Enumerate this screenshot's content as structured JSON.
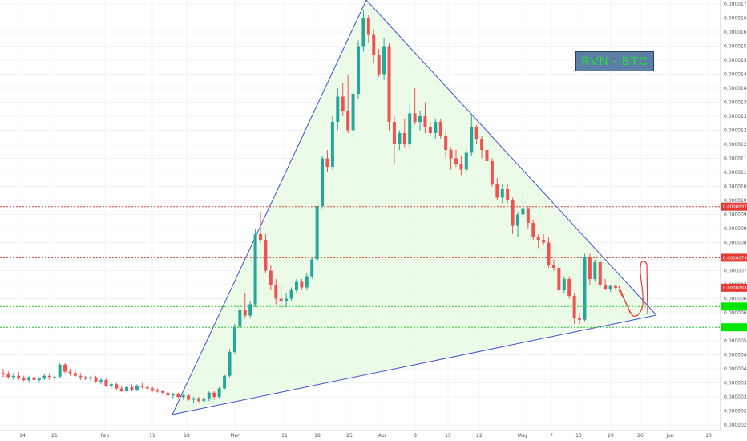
{
  "chart_data": {
    "type": "candlestick",
    "title_box": "RVN - BTC",
    "y_ticks": [
      "0.00001700",
      "0.00001650",
      "0.00001600",
      "0.00001550",
      "0.00001500",
      "0.00001450",
      "0.00001400",
      "0.00001350",
      "0.00001300",
      "0.00001250",
      "0.00001200",
      "0.00001150",
      "0.00001100",
      "0.00001050",
      "0.00001000",
      "0.00000950",
      "0.00000900",
      "0.00000850",
      "0.00000750",
      "0.00000700",
      "0.00000650",
      "0.00000600",
      "0.00000550",
      "0.00000500",
      "0.00000450",
      "0.00000400",
      "0.00000350",
      "0.00000300",
      "0.00000250",
      "0.00000200"
    ],
    "x_ticks": [
      "14",
      "21",
      "Feb",
      "11",
      "18",
      "Mar",
      "11",
      "18",
      "25",
      "Apr",
      "8",
      "15",
      "22",
      "May",
      "7",
      "13",
      "20",
      "26",
      "Jun",
      "10"
    ],
    "price_labels": [
      {
        "value": "0.00000978",
        "price": 9.78e-06,
        "color": "#e53935"
      },
      {
        "value": "0.00000796",
        "price": 7.96e-06,
        "color": "#e53935"
      },
      {
        "value": "0.00000689",
        "price": 6.89e-06,
        "color": "#e53935"
      },
      {
        "value": "",
        "price": 6.22e-06,
        "color": "#00e600"
      },
      {
        "value": "",
        "price": 5.48e-06,
        "color": "#00e600"
      }
    ],
    "horizontal_lines": [
      {
        "price": 9.78e-06,
        "color": "#e53935",
        "style": "dotted"
      },
      {
        "price": 7.96e-06,
        "color": "#e53935",
        "style": "dotted"
      },
      {
        "price": 6.22e-06,
        "color": "#22cc22",
        "style": "dotted"
      },
      {
        "price": 5.48e-06,
        "color": "#22cc22",
        "style": "dotted"
      }
    ],
    "colors": {
      "up": "#26a69a",
      "down": "#ef5350",
      "triangle": "#3f51d5",
      "triangle_fill": "#e9fbe6",
      "sketch": "#e53935"
    },
    "candles": [
      {
        "o": 3.85e-06,
        "h": 4e-06,
        "l": 3.7e-06,
        "c": 3.8e-06
      },
      {
        "o": 3.8e-06,
        "h": 3.9e-06,
        "l": 3.65e-06,
        "c": 3.7e-06
      },
      {
        "o": 3.7e-06,
        "h": 3.85e-06,
        "l": 3.6e-06,
        "c": 3.75e-06
      },
      {
        "o": 3.75e-06,
        "h": 3.9e-06,
        "l": 3.6e-06,
        "c": 3.65e-06
      },
      {
        "o": 3.65e-06,
        "h": 3.75e-06,
        "l": 3.55e-06,
        "c": 3.6e-06
      },
      {
        "o": 3.6e-06,
        "h": 3.75e-06,
        "l": 3.5e-06,
        "c": 3.7e-06
      },
      {
        "o": 3.7e-06,
        "h": 3.8e-06,
        "l": 3.55e-06,
        "c": 3.6e-06
      },
      {
        "o": 3.6e-06,
        "h": 3.7e-06,
        "l": 3.5e-06,
        "c": 3.65e-06
      },
      {
        "o": 3.65e-06,
        "h": 3.8e-06,
        "l": 3.6e-06,
        "c": 3.75e-06
      },
      {
        "o": 3.75e-06,
        "h": 3.85e-06,
        "l": 3.6e-06,
        "c": 3.7e-06
      },
      {
        "o": 3.7e-06,
        "h": 3.75e-06,
        "l": 3.6e-06,
        "c": 3.72e-06
      },
      {
        "o": 3.72e-06,
        "h": 4.2e-06,
        "l": 3.65e-06,
        "c": 4.15e-06
      },
      {
        "o": 4.15e-06,
        "h": 4.2e-06,
        "l": 3.85e-06,
        "c": 3.9e-06
      },
      {
        "o": 3.9e-06,
        "h": 4e-06,
        "l": 3.75e-06,
        "c": 3.85e-06
      },
      {
        "o": 3.85e-06,
        "h": 3.95e-06,
        "l": 3.7e-06,
        "c": 3.75e-06
      },
      {
        "o": 3.75e-06,
        "h": 3.85e-06,
        "l": 3.6e-06,
        "c": 3.7e-06
      },
      {
        "o": 3.7e-06,
        "h": 3.75e-06,
        "l": 3.6e-06,
        "c": 3.65e-06
      },
      {
        "o": 3.65e-06,
        "h": 3.75e-06,
        "l": 3.55e-06,
        "c": 3.7e-06
      },
      {
        "o": 3.7e-06,
        "h": 3.75e-06,
        "l": 3.5e-06,
        "c": 3.55e-06
      },
      {
        "o": 3.55e-06,
        "h": 3.65e-06,
        "l": 3.45e-06,
        "c": 3.6e-06
      },
      {
        "o": 3.6e-06,
        "h": 3.65e-06,
        "l": 3.35e-06,
        "c": 3.4e-06
      },
      {
        "o": 3.4e-06,
        "h": 3.5e-06,
        "l": 3.3e-06,
        "c": 3.45e-06
      },
      {
        "o": 3.45e-06,
        "h": 3.5e-06,
        "l": 3.25e-06,
        "c": 3.3e-06
      },
      {
        "o": 3.3e-06,
        "h": 3.4e-06,
        "l": 3.18e-06,
        "c": 3.2e-06
      },
      {
        "o": 3.2e-06,
        "h": 3.4e-06,
        "l": 3.15e-06,
        "c": 3.35e-06
      },
      {
        "o": 3.35e-06,
        "h": 3.45e-06,
        "l": 3.2e-06,
        "c": 3.25e-06
      },
      {
        "o": 3.25e-06,
        "h": 3.45e-06,
        "l": 3.2e-06,
        "c": 3.4e-06
      },
      {
        "o": 3.4e-06,
        "h": 3.5e-06,
        "l": 3.3e-06,
        "c": 3.35e-06
      },
      {
        "o": 3.35e-06,
        "h": 3.45e-06,
        "l": 3.25e-06,
        "c": 3.3e-06
      },
      {
        "o": 3.3e-06,
        "h": 3.35e-06,
        "l": 3.18e-06,
        "c": 3.22e-06
      },
      {
        "o": 3.22e-06,
        "h": 3.3e-06,
        "l": 3.15e-06,
        "c": 3.2e-06
      },
      {
        "o": 3.2e-06,
        "h": 3.25e-06,
        "l": 3.1e-06,
        "c": 3.15e-06
      },
      {
        "o": 3.15e-06,
        "h": 3.2e-06,
        "l": 3e-06,
        "c": 3.05e-06
      },
      {
        "o": 3.05e-06,
        "h": 3.15e-06,
        "l": 2.95e-06,
        "c": 3.1e-06
      },
      {
        "o": 3.1e-06,
        "h": 3.15e-06,
        "l": 2.95e-06,
        "c": 3e-06
      },
      {
        "o": 3e-06,
        "h": 3.1e-06,
        "l": 2.9e-06,
        "c": 3.05e-06
      },
      {
        "o": 3.05e-06,
        "h": 3.1e-06,
        "l": 2.85e-06,
        "c": 2.9e-06
      },
      {
        "o": 2.9e-06,
        "h": 3e-06,
        "l": 2.8e-06,
        "c": 2.95e-06
      },
      {
        "o": 2.95e-06,
        "h": 3e-06,
        "l": 2.8e-06,
        "c": 2.85e-06
      },
      {
        "o": 2.85e-06,
        "h": 3e-06,
        "l": 2.75e-06,
        "c": 2.95e-06
      },
      {
        "o": 2.95e-06,
        "h": 3.2e-06,
        "l": 2.85e-06,
        "c": 3.15e-06
      },
      {
        "o": 3.15e-06,
        "h": 3.2e-06,
        "l": 2.9e-06,
        "c": 3e-06
      },
      {
        "o": 3e-06,
        "h": 3.35e-06,
        "l": 2.95e-06,
        "c": 3.3e-06
      },
      {
        "o": 3.3e-06,
        "h": 3.8e-06,
        "l": 3.25e-06,
        "c": 3.75e-06
      },
      {
        "o": 3.75e-06,
        "h": 4.7e-06,
        "l": 3.7e-06,
        "c": 4.6e-06
      },
      {
        "o": 4.6e-06,
        "h": 5.6e-06,
        "l": 4.55e-06,
        "c": 5.5e-06
      },
      {
        "o": 5.5e-06,
        "h": 6.2e-06,
        "l": 5.4e-06,
        "c": 6.1e-06
      },
      {
        "o": 6.1e-06,
        "h": 6.7e-06,
        "l": 5.8e-06,
        "c": 5.9e-06
      },
      {
        "o": 5.9e-06,
        "h": 6.4e-06,
        "l": 5.8e-06,
        "c": 6.3e-06
      },
      {
        "o": 6.3e-06,
        "h": 9e-06,
        "l": 6.2e-06,
        "c": 8.8e-06
      },
      {
        "o": 8.8e-06,
        "h": 9.6e-06,
        "l": 8.5e-06,
        "c": 8.6e-06
      },
      {
        "o": 8.6e-06,
        "h": 8.8e-06,
        "l": 7.4e-06,
        "c": 7.5e-06
      },
      {
        "o": 7.5e-06,
        "h": 7.7e-06,
        "l": 6.8e-06,
        "c": 7e-06
      },
      {
        "o": 7e-06,
        "h": 7.2e-06,
        "l": 6.3e-06,
        "c": 6.5e-06
      },
      {
        "o": 6.5e-06,
        "h": 7e-06,
        "l": 6.1e-06,
        "c": 6.4e-06
      },
      {
        "o": 6.4e-06,
        "h": 6.7e-06,
        "l": 6.2e-06,
        "c": 6.5e-06
      },
      {
        "o": 6.5e-06,
        "h": 6.9e-06,
        "l": 6.4e-06,
        "c": 6.8e-06
      },
      {
        "o": 6.8e-06,
        "h": 7.2e-06,
        "l": 6.7e-06,
        "c": 7.1e-06
      },
      {
        "o": 7.1e-06,
        "h": 7.2e-06,
        "l": 6.8e-06,
        "c": 6.9e-06
      },
      {
        "o": 6.9e-06,
        "h": 7.4e-06,
        "l": 6.8e-06,
        "c": 7.3e-06
      },
      {
        "o": 7.3e-06,
        "h": 8e-06,
        "l": 7.2e-06,
        "c": 7.9e-06
      },
      {
        "o": 7.9e-06,
        "h": 1e-05,
        "l": 7.8e-06,
        "c": 9.8e-06
      },
      {
        "o": 9.8e-06,
        "h": 1.16e-05,
        "l": 9.7e-06,
        "c": 1.15e-05
      },
      {
        "o": 1.15e-05,
        "h": 1.18e-05,
        "l": 1.1e-05,
        "c": 1.12e-05
      },
      {
        "o": 1.12e-05,
        "h": 1.3e-05,
        "l": 1.11e-05,
        "c": 1.28e-05
      },
      {
        "o": 1.28e-05,
        "h": 1.4e-05,
        "l": 1.25e-05,
        "c": 1.37e-05
      },
      {
        "o": 1.37e-05,
        "h": 1.42e-05,
        "l": 1.3e-05,
        "c": 1.32e-05
      },
      {
        "o": 1.32e-05,
        "h": 1.45e-05,
        "l": 1.24e-05,
        "c": 1.25e-05
      },
      {
        "o": 1.25e-05,
        "h": 1.4e-05,
        "l": 1.22e-05,
        "c": 1.38e-05
      },
      {
        "o": 1.38e-05,
        "h": 1.57e-05,
        "l": 1.36e-05,
        "c": 1.55e-05
      },
      {
        "o": 1.55e-05,
        "h": 1.68e-05,
        "l": 1.53e-05,
        "c": 1.65e-05
      },
      {
        "o": 1.65e-05,
        "h": 1.66e-05,
        "l": 1.56e-05,
        "c": 1.59e-05
      },
      {
        "o": 1.59e-05,
        "h": 1.61e-05,
        "l": 1.49e-05,
        "c": 1.52e-05
      },
      {
        "o": 1.52e-05,
        "h": 1.54e-05,
        "l": 1.44e-05,
        "c": 1.45e-05
      },
      {
        "o": 1.45e-05,
        "h": 1.58e-05,
        "l": 1.43e-05,
        "c": 1.55e-05
      },
      {
        "o": 1.55e-05,
        "h": 1.56e-05,
        "l": 1.25e-05,
        "c": 1.28e-05
      },
      {
        "o": 1.28e-05,
        "h": 1.3e-05,
        "l": 1.13e-05,
        "c": 1.2e-05
      },
      {
        "o": 1.2e-05,
        "h": 1.25e-05,
        "l": 1.18e-05,
        "c": 1.24e-05
      },
      {
        "o": 1.24e-05,
        "h": 1.29e-05,
        "l": 1.19e-05,
        "c": 1.2e-05
      },
      {
        "o": 1.2e-05,
        "h": 1.34e-05,
        "l": 1.19e-05,
        "c": 1.31e-05
      },
      {
        "o": 1.31e-05,
        "h": 1.4e-05,
        "l": 1.27e-05,
        "c": 1.28e-05
      },
      {
        "o": 1.28e-05,
        "h": 1.32e-05,
        "l": 1.25e-05,
        "c": 1.3e-05
      },
      {
        "o": 1.3e-05,
        "h": 1.35e-05,
        "l": 1.24e-05,
        "c": 1.26e-05
      },
      {
        "o": 1.26e-05,
        "h": 1.28e-05,
        "l": 1.23e-05,
        "c": 1.24e-05
      },
      {
        "o": 1.24e-05,
        "h": 1.29e-05,
        "l": 1.22e-05,
        "c": 1.28e-05
      },
      {
        "o": 1.28e-05,
        "h": 1.29e-05,
        "l": 1.22e-05,
        "c": 1.23e-05
      },
      {
        "o": 1.23e-05,
        "h": 1.25e-05,
        "l": 1.15e-05,
        "c": 1.18e-05
      },
      {
        "o": 1.18e-05,
        "h": 1.19e-05,
        "l": 1.11e-05,
        "c": 1.15e-05
      },
      {
        "o": 1.15e-05,
        "h": 1.18e-05,
        "l": 1.12e-05,
        "c": 1.13e-05
      },
      {
        "o": 1.13e-05,
        "h": 1.16e-05,
        "l": 1.09e-05,
        "c": 1.11e-05
      },
      {
        "o": 1.11e-05,
        "h": 1.18e-05,
        "l": 1.1e-05,
        "c": 1.17e-05
      },
      {
        "o": 1.17e-05,
        "h": 1.31e-05,
        "l": 1.16e-05,
        "c": 1.26e-05
      },
      {
        "o": 1.26e-05,
        "h": 1.27e-05,
        "l": 1.2e-05,
        "c": 1.22e-05
      },
      {
        "o": 1.22e-05,
        "h": 1.23e-05,
        "l": 1.15e-05,
        "c": 1.18e-05
      },
      {
        "o": 1.18e-05,
        "h": 1.2e-05,
        "l": 1.1e-05,
        "c": 1.14e-05
      },
      {
        "o": 1.14e-05,
        "h": 1.15e-05,
        "l": 1.05e-05,
        "c": 1.06e-05
      },
      {
        "o": 1.06e-05,
        "h": 1.08e-05,
        "l": 1e-05,
        "c": 1.01e-05
      },
      {
        "o": 1.01e-05,
        "h": 1.06e-05,
        "l": 9.9e-06,
        "c": 1.04e-05
      },
      {
        "o": 1.04e-05,
        "h": 1.06e-05,
        "l": 9.9e-06,
        "c": 1e-05
      },
      {
        "o": 1e-05,
        "h": 1.01e-05,
        "l": 8.8e-06,
        "c": 9.1e-06
      },
      {
        "o": 9.1e-06,
        "h": 9.6e-06,
        "l": 8.7e-06,
        "c": 9.5e-06
      },
      {
        "o": 9.5e-06,
        "h": 1.03e-05,
        "l": 9.4e-06,
        "c": 9.7e-06
      },
      {
        "o": 9.7e-06,
        "h": 9.8e-06,
        "l": 9e-06,
        "c": 9.2e-06
      },
      {
        "o": 9.2e-06,
        "h": 9.3e-06,
        "l": 8.6e-06,
        "c": 8.7e-06
      },
      {
        "o": 8.7e-06,
        "h": 8.8e-06,
        "l": 8.3e-06,
        "c": 8.6e-06
      },
      {
        "o": 8.6e-06,
        "h": 8.8e-06,
        "l": 8.4e-06,
        "c": 8.5e-06
      },
      {
        "o": 8.5e-06,
        "h": 8.7e-06,
        "l": 7.6e-06,
        "c": 7.7e-06
      },
      {
        "o": 7.7e-06,
        "h": 7.9e-06,
        "l": 7.5e-06,
        "c": 7.6e-06
      },
      {
        "o": 7.6e-06,
        "h": 7.7e-06,
        "l": 6.7e-06,
        "c": 6.8e-06
      },
      {
        "o": 6.8e-06,
        "h": 7.3e-06,
        "l": 6.7e-06,
        "c": 7.2e-06
      },
      {
        "o": 7.2e-06,
        "h": 7.3e-06,
        "l": 6.5e-06,
        "c": 6.6e-06
      },
      {
        "o": 6.6e-06,
        "h": 6.7e-06,
        "l": 5.6e-06,
        "c": 5.8e-06
      },
      {
        "o": 5.8e-06,
        "h": 6e-06,
        "l": 5.6e-06,
        "c": 5.75e-06
      },
      {
        "o": 5.75e-06,
        "h": 8.1e-06,
        "l": 5.7e-06,
        "c": 8e-06
      },
      {
        "o": 8e-06,
        "h": 8.1e-06,
        "l": 7e-06,
        "c": 7.2e-06
      },
      {
        "o": 7.2e-06,
        "h": 7.9e-06,
        "l": 7.1e-06,
        "c": 7.8e-06
      },
      {
        "o": 7.8e-06,
        "h": 7.9e-06,
        "l": 6.9e-06,
        "c": 7e-06
      },
      {
        "o": 7e-06,
        "h": 7.2e-06,
        "l": 6.8e-06,
        "c": 6.85e-06
      },
      {
        "o": 6.85e-06,
        "h": 7e-06,
        "l": 6.75e-06,
        "c": 6.95e-06
      },
      {
        "o": 6.95e-06,
        "h": 7e-06,
        "l": 6.8e-06,
        "c": 6.89e-06
      }
    ]
  }
}
